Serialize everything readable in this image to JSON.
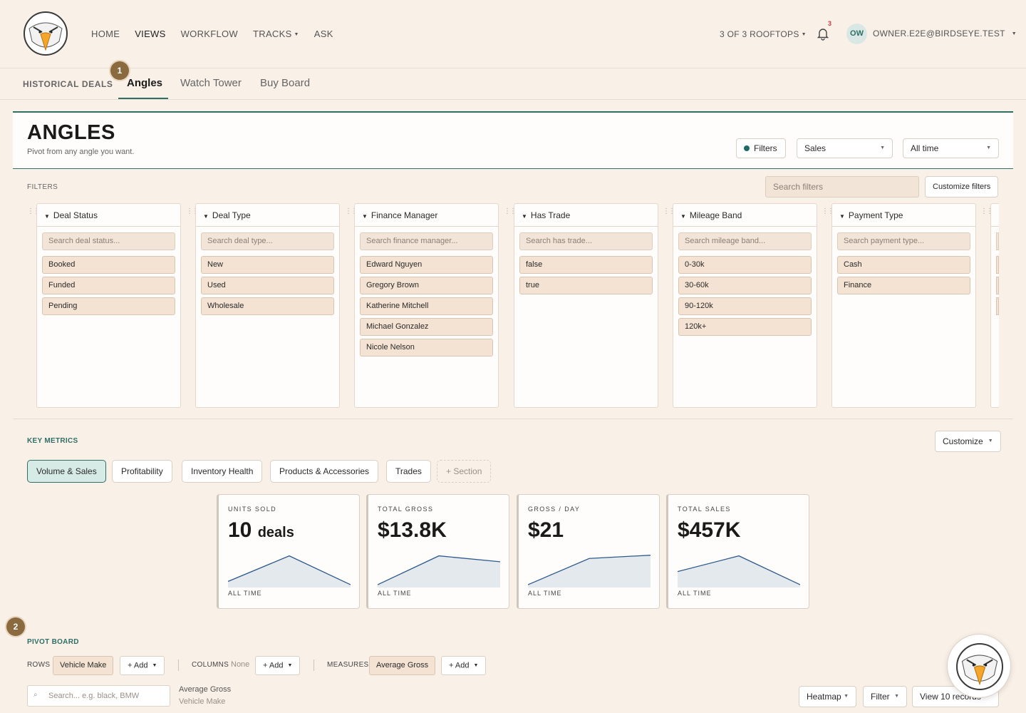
{
  "nav": {
    "links": [
      "HOME",
      "VIEWS",
      "WORKFLOW",
      "TRACKS",
      "ASK"
    ],
    "rooftops": "3 OF 3 ROOFTOPS",
    "notifications": "3",
    "avatar": "OW",
    "user_email": "OWNER.E2E@BIRDSEYE.TEST"
  },
  "subnav": {
    "title": "HISTORICAL DEALS",
    "tabs": [
      "Angles",
      "Watch Tower",
      "Buy Board"
    ],
    "active_tab": "Angles",
    "step1": "1",
    "step2": "2"
  },
  "header": {
    "title": "ANGLES",
    "subtitle": "Pivot from any angle you want.",
    "filters_button": "Filters",
    "sales_select": "Sales",
    "time_select": "All time"
  },
  "filters": {
    "label": "FILTERS",
    "search_placeholder": "Search filters",
    "customize": "Customize filters",
    "columns": [
      {
        "title": "Deal Status",
        "search": "Search deal status...",
        "options": [
          "Booked",
          "Funded",
          "Pending"
        ]
      },
      {
        "title": "Deal Type",
        "search": "Search deal type...",
        "options": [
          "New",
          "Used",
          "Wholesale"
        ]
      },
      {
        "title": "Finance Manager",
        "search": "Search finance manager...",
        "options": [
          "Edward Nguyen",
          "Gregory Brown",
          "Katherine Mitchell",
          "Michael Gonzalez",
          "Nicole Nelson"
        ]
      },
      {
        "title": "Has Trade",
        "search": "Search has trade...",
        "options": [
          "false",
          "true"
        ]
      },
      {
        "title": "Mileage Band",
        "search": "Search mileage band...",
        "options": [
          "0-30k",
          "30-60k",
          "90-120k",
          "120k+"
        ]
      },
      {
        "title": "Payment Type",
        "search": "Search payment type...",
        "options": [
          "Cash",
          "Finance"
        ]
      }
    ]
  },
  "metrics": {
    "label": "KEY METRICS",
    "customize": "Customize",
    "sections": [
      "Volume & Sales",
      "Profitability",
      "Inventory Health",
      "Products & Accessories",
      "Trades",
      "+ Section"
    ],
    "active_section": "Volume & Sales",
    "cards": [
      {
        "label": "UNITS SOLD",
        "value": "10",
        "unit": "deals",
        "footer": "ALL TIME",
        "trend": [
          0.12,
          0.9,
          0.02
        ]
      },
      {
        "label": "TOTAL GROSS",
        "value": "$13.8K",
        "unit": "",
        "footer": "ALL TIME",
        "trend": [
          0.02,
          0.9,
          0.72
        ]
      },
      {
        "label": "GROSS / DAY",
        "value": "$21",
        "unit": "",
        "footer": "ALL TIME",
        "trend": [
          0.02,
          0.82,
          0.92
        ]
      },
      {
        "label": "TOTAL SALES",
        "value": "$457K",
        "unit": "",
        "footer": "ALL TIME",
        "trend": [
          0.42,
          0.9,
          0.02
        ]
      }
    ]
  },
  "pivot": {
    "label": "PIVOT BOARD",
    "rows_label": "ROWS",
    "rows_chip": "Vehicle Make",
    "columns_label": "COLUMNS",
    "columns_value": "None",
    "measures_label": "MEASURES",
    "measures_chip": "Average Gross",
    "add": "+ Add",
    "search_placeholder": "Search... e.g. black, BMW",
    "measure_heading": "Average Gross",
    "row_heading": "Vehicle Make",
    "heatmap": "Heatmap",
    "filter": "Filter",
    "view_records": "View 10 records"
  },
  "colors": {
    "accent": "#2f6f66",
    "background": "#f9f0e8",
    "badge": "#8a6a3e",
    "spark_line": "#2d5a8c",
    "spark_fill": "#e4e9ee"
  }
}
